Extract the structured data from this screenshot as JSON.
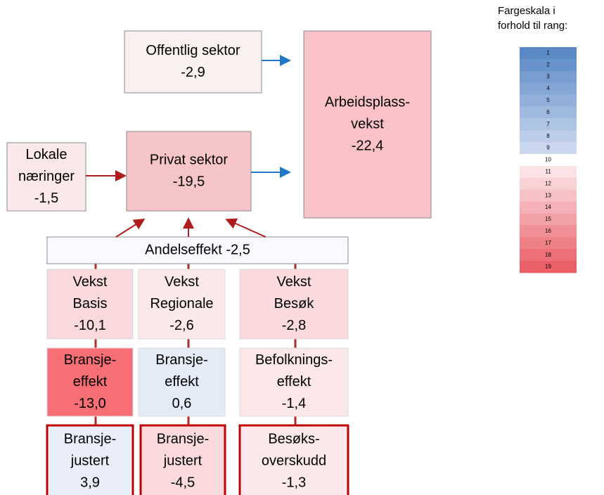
{
  "nodes": [
    {
      "lines": [
        "Offentlig sektor"
      ],
      "value": "-2,9"
    },
    {
      "lines": [
        "Arbeidsplass-",
        "vekst"
      ],
      "value": "-22,4"
    },
    {
      "lines": [
        "Lokale",
        "næringer"
      ],
      "value": "-1,5"
    },
    {
      "lines": [
        "Privat sektor"
      ],
      "value": "-19,5"
    },
    {
      "lines": [
        "Andelseffekt -2,5"
      ]
    },
    {
      "lines": [
        "Vekst",
        "Basis"
      ],
      "value": "-10,1"
    },
    {
      "lines": [
        "Vekst",
        "Regionale"
      ],
      "value": "-2,6"
    },
    {
      "lines": [
        "Vekst",
        "Besøk"
      ],
      "value": "-2,8"
    },
    {
      "lines": [
        "Bransje-",
        "effekt"
      ],
      "value": "-13,0"
    },
    {
      "lines": [
        "Bransje-",
        "effekt"
      ],
      "value": "0,6"
    },
    {
      "lines": [
        "Befolknings-",
        "effekt"
      ],
      "value": "-1,4"
    },
    {
      "lines": [
        "Bransje-",
        "justert"
      ],
      "value": "3,9"
    },
    {
      "lines": [
        "Bransje-",
        "justert"
      ],
      "value": "-4,5"
    },
    {
      "lines": [
        "Besøks-",
        "overskudd"
      ],
      "value": "-1,3"
    }
  ],
  "legend": {
    "title": [
      "Fargeskala i",
      "forhold til rang:"
    ],
    "ranks": [
      1,
      2,
      3,
      4,
      5,
      6,
      7,
      8,
      9,
      10,
      11,
      12,
      13,
      14,
      15,
      16,
      17,
      18,
      19
    ],
    "colors": [
      "#5b89c6",
      "#6892cb",
      "#769cd0",
      "#84a6d5",
      "#92b0da",
      "#a0badf",
      "#aec4e4",
      "#bcceea",
      "#cad8ef",
      "#ffffff",
      "#fbe3e5",
      "#f9d2d5",
      "#f7c2c6",
      "#f5b1b6",
      "#f3a1a7",
      "#f19097",
      "#ef8088",
      "#ed6f78",
      "#eb5f69"
    ]
  }
}
